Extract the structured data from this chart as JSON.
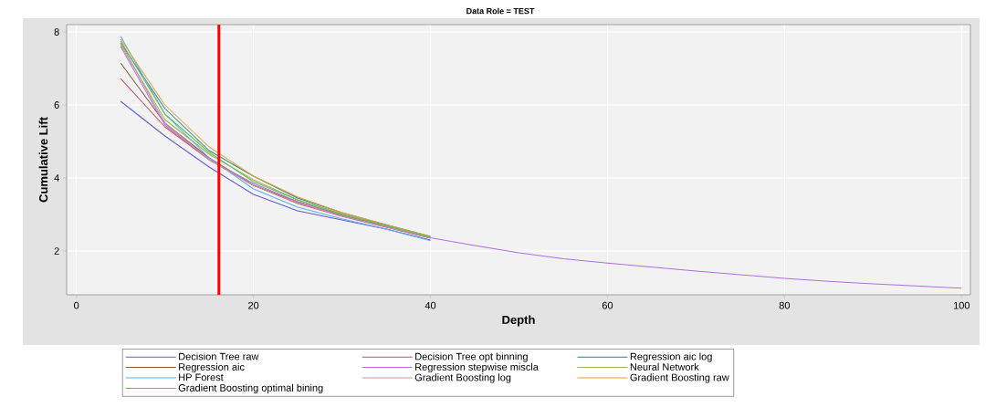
{
  "chart_data": {
    "type": "line",
    "title": "Data Role = TEST",
    "xlabel": "Depth",
    "ylabel": "Cumulative Lift",
    "x": [
      5,
      10,
      15,
      20,
      25,
      30,
      35,
      40,
      45,
      50,
      55,
      60,
      65,
      70,
      75,
      80,
      85,
      90,
      95,
      100
    ],
    "series": [
      {
        "name": "Decision Tree raw",
        "color": "#5b5bdc",
        "values": [
          6.1,
          5.15,
          4.3,
          3.55,
          3.1,
          2.85,
          2.6,
          2.3,
          null,
          null,
          null,
          null,
          null,
          null,
          null,
          null,
          null,
          null,
          null,
          null
        ]
      },
      {
        "name": "Decision Tree opt binning",
        "color": "#c8505a",
        "values": [
          6.72,
          5.4,
          4.5,
          3.8,
          3.3,
          2.95,
          2.65,
          2.35,
          null,
          null,
          null,
          null,
          null,
          null,
          null,
          null,
          null,
          null,
          null,
          null
        ]
      },
      {
        "name": "Regression aic log",
        "color": "#2a7f7f",
        "values": [
          7.7,
          5.9,
          4.75,
          4.05,
          3.45,
          3.05,
          2.72,
          2.4,
          null,
          null,
          null,
          null,
          null,
          null,
          null,
          null,
          null,
          null,
          null,
          null
        ]
      },
      {
        "name": "Regression aic",
        "color": "#7a5a3a",
        "values": [
          7.15,
          5.5,
          4.55,
          3.8,
          3.35,
          2.98,
          2.68,
          2.37,
          null,
          null,
          null,
          null,
          null,
          null,
          null,
          null,
          null,
          null,
          null,
          null
        ]
      },
      {
        "name": "Regression stepwise miscla",
        "color": "#b070e0",
        "values": [
          7.6,
          5.45,
          4.5,
          3.85,
          3.35,
          2.97,
          2.67,
          2.36,
          2.15,
          1.95,
          1.79,
          1.67,
          1.56,
          1.45,
          1.35,
          1.25,
          1.17,
          1.1,
          1.04,
          0.98
        ]
      },
      {
        "name": "Neural Network",
        "color": "#a0b050",
        "values": [
          7.65,
          5.6,
          4.65,
          3.95,
          3.4,
          3.02,
          2.7,
          2.38,
          null,
          null,
          null,
          null,
          null,
          null,
          null,
          null,
          null,
          null,
          null,
          null
        ]
      },
      {
        "name": "HP Forest",
        "color": "#5ab0f0",
        "values": [
          7.88,
          5.75,
          4.55,
          3.7,
          3.2,
          2.88,
          2.6,
          2.28,
          null,
          null,
          null,
          null,
          null,
          null,
          null,
          null,
          null,
          null,
          null,
          null
        ]
      },
      {
        "name": "Gradient Boosting log",
        "color": "#c890a8",
        "values": [
          7.7,
          5.5,
          4.5,
          3.8,
          3.32,
          2.96,
          2.66,
          2.36,
          null,
          null,
          null,
          null,
          null,
          null,
          null,
          null,
          null,
          null,
          null,
          null
        ]
      },
      {
        "name": "Gradient Boosting raw",
        "color": "#e0a040",
        "values": [
          7.8,
          6.0,
          4.85,
          4.05,
          3.48,
          3.05,
          2.72,
          2.4,
          null,
          null,
          null,
          null,
          null,
          null,
          null,
          null,
          null,
          null,
          null,
          null
        ]
      },
      {
        "name": "Gradient Boosting optimal bining",
        "color": "#60c050",
        "values": [
          7.75,
          5.75,
          4.7,
          3.9,
          3.4,
          3.0,
          2.7,
          2.38,
          null,
          null,
          null,
          null,
          null,
          null,
          null,
          null,
          null,
          null,
          null,
          null
        ]
      }
    ],
    "xlim": [
      -1.1,
      101
    ],
    "ylim": [
      0.8,
      8.2
    ],
    "xticks": [
      0,
      20,
      40,
      60,
      80,
      100
    ],
    "yticks": [
      2,
      4,
      6,
      8
    ],
    "grid": true,
    "legend": "bottom",
    "marker": "none",
    "line_style": "solid",
    "ref_lines": [
      {
        "axis": "x",
        "value": 16.1,
        "color": "#ff0000"
      }
    ]
  }
}
